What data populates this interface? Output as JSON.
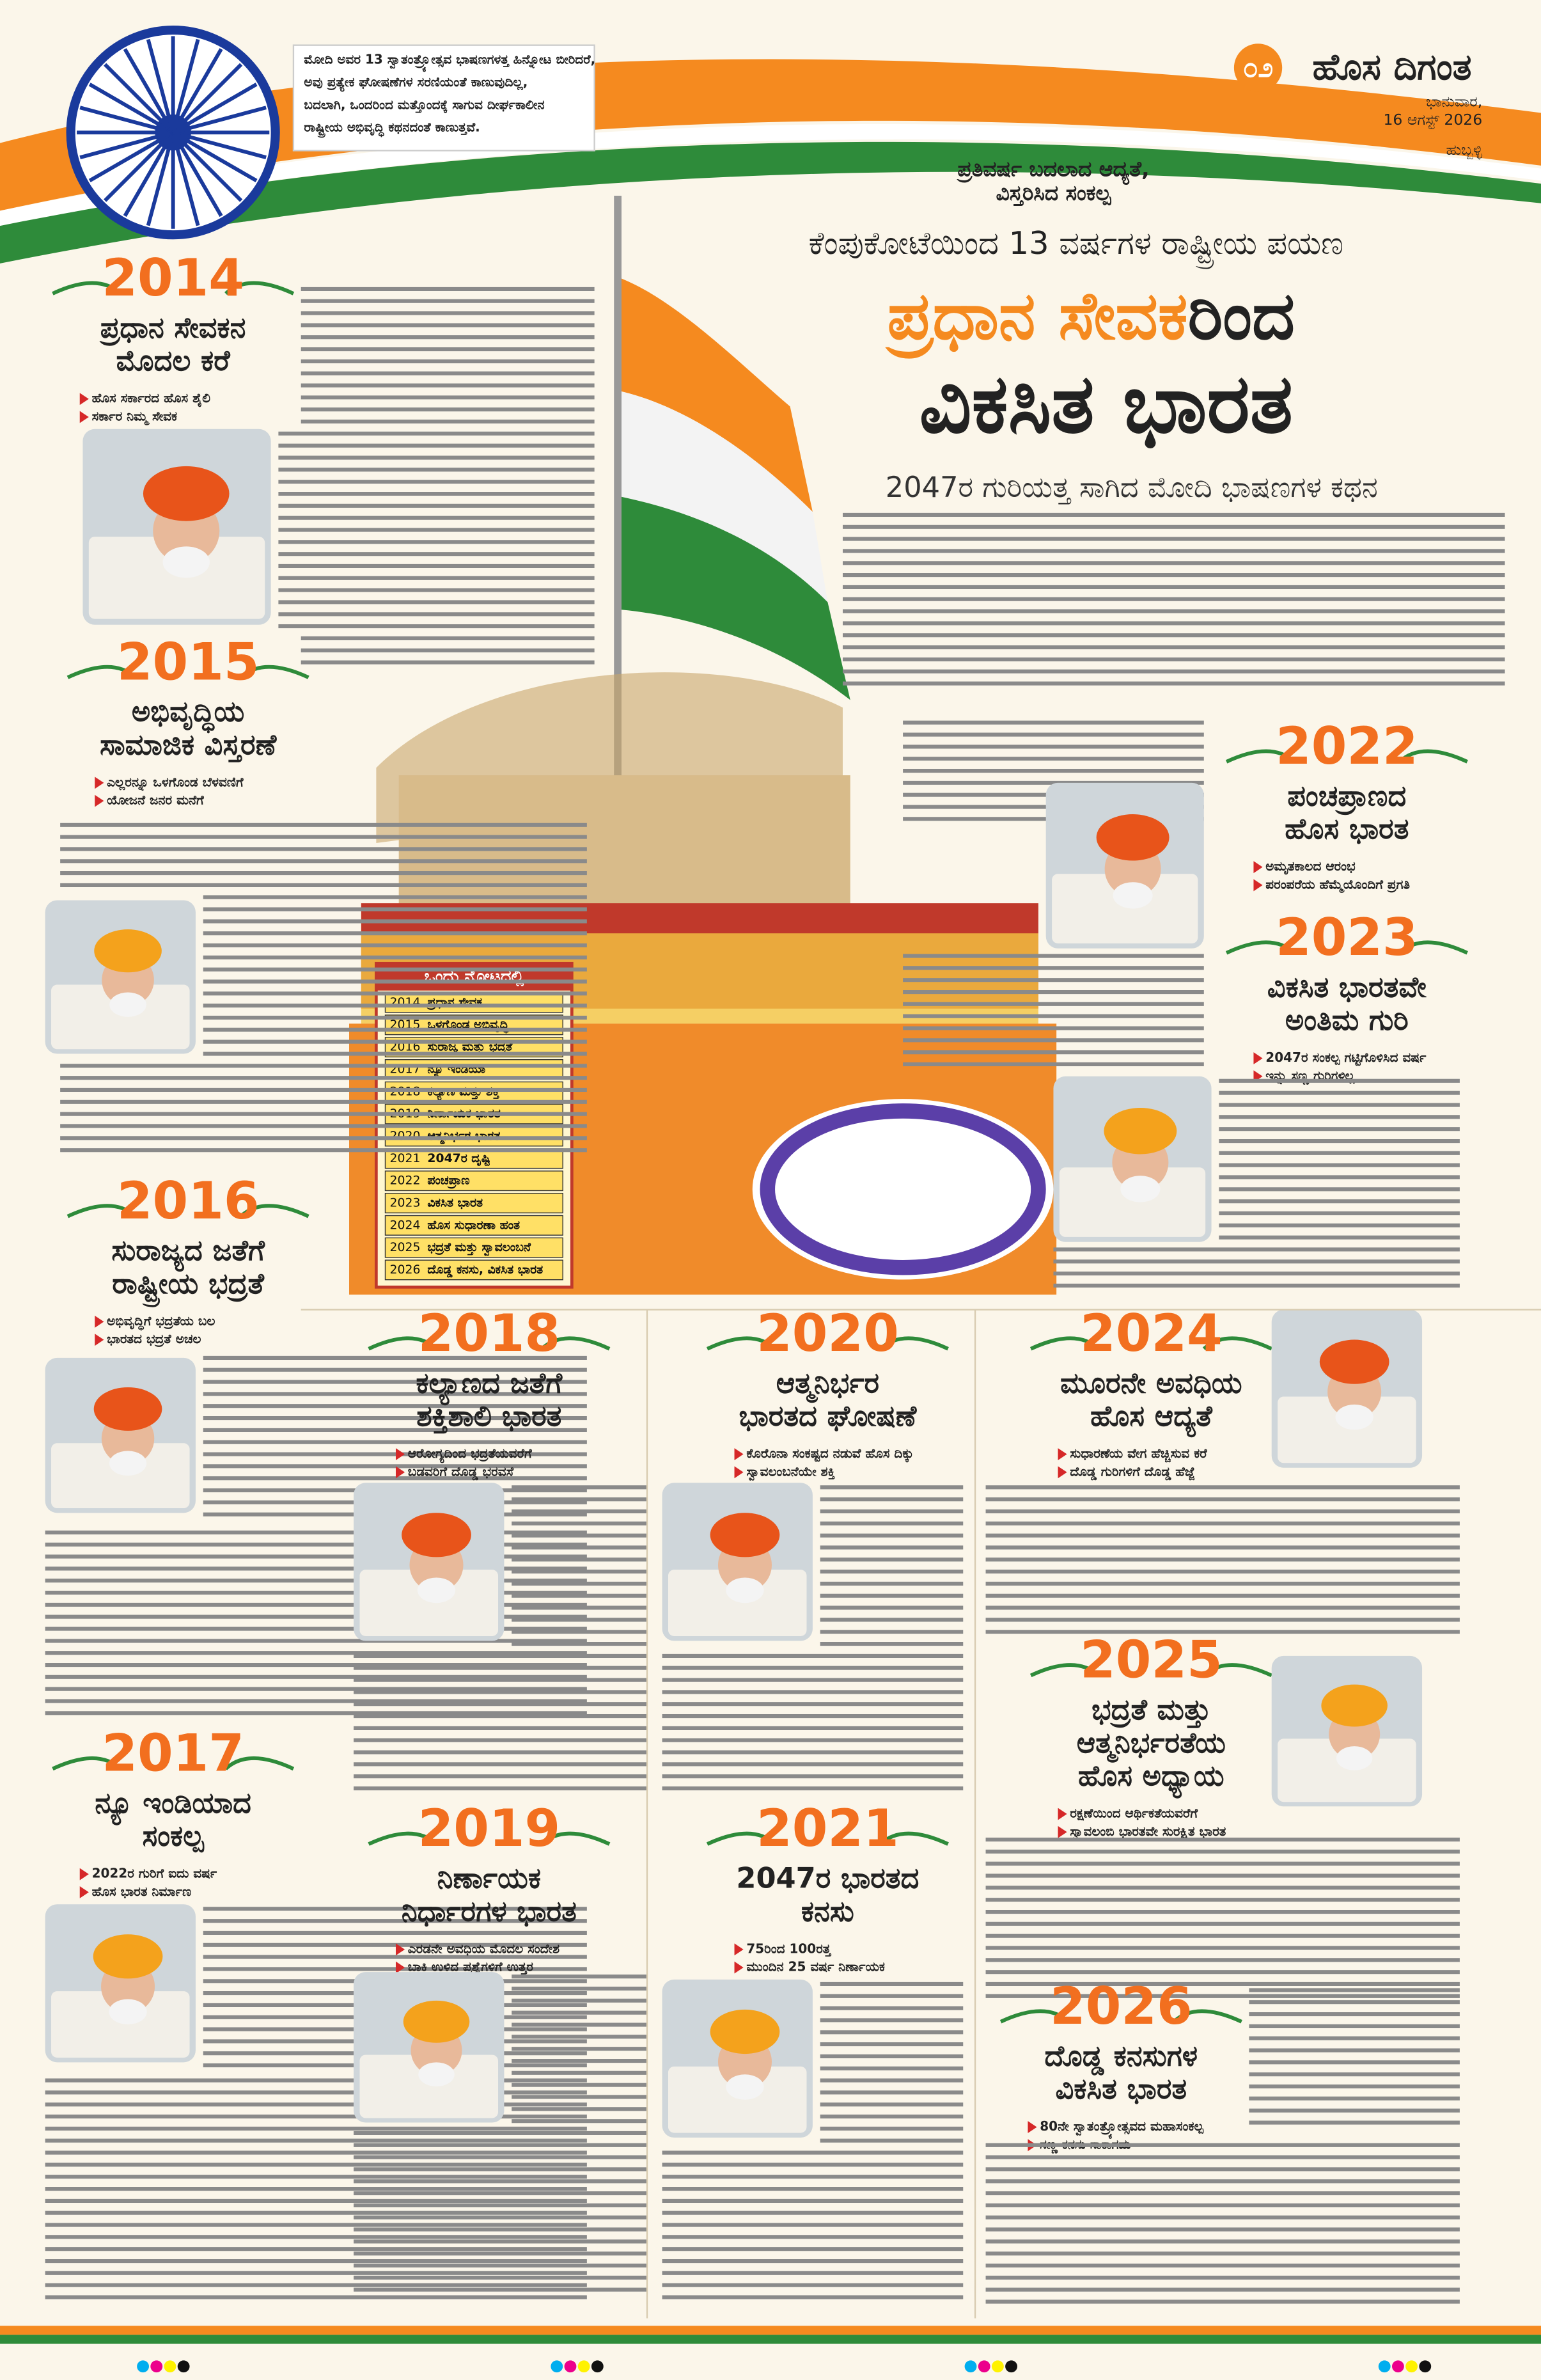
{
  "header": {
    "page_number": "೦೨",
    "masthead": "ಹೊಸ ದಿಗಂತ",
    "day": "ಭಾನುವಾರ,",
    "date": "16 ಆಗಸ್ಟ್ 2026",
    "city": "ಹುಬ್ಬಳ್ಳಿ"
  },
  "intro_box": [
    "ಮೋದಿ ಅವರ 13 ಸ್ವಾತಂತ್ರ್ಯೋತ್ಸವ ಭಾಷಣಗಳತ್ತ ಹಿನ್ನೋಟ ಬೀರಿದರೆ,",
    "ಅವು ಪ್ರತ್ಯೇಕ ಘೋಷಣೆಗಳ ಸರಣಿಯಂತೆ ಕಾಣುವುದಿಲ್ಲ,",
    "ಬದಲಾಗಿ, ಒಂದರಿಂದ ಮತ್ತೊಂದಕ್ಕೆ ಸಾಗುವ ದೀರ್ಘಕಾಲೀನ",
    "ರಾಷ್ಟ್ರೀಯ ಅಭಿವೃದ್ಧಿ ಕಥನದಂತೆ ಕಾಣುತ್ತವೆ."
  ],
  "kicker": [
    "ಪ್ರತಿವರ್ಷ ಬದಲಾದ ಆದ್ಯತೆ,",
    "ವಿಸ್ತರಿಸಿದ ಸಂಕಲ್ಪ"
  ],
  "overline": "ಕೆಂಪುಕೋಟೆಯಿಂದ 13 ವರ್ಷಗಳ ರಾಷ್ಟ್ರೀಯ ಪಯಣ",
  "title": {
    "highlight": "ಪ್ರಧಾನ ಸೇವಕ",
    "rest": "ರಿಂದ",
    "line2": "ವಿಕಸಿತ ಭಾರತ"
  },
  "subtitle": "2047ರ ಗುರಿಯತ್ತ ಸಾಗಿದ ಮೋದಿ ಭಾಷಣಗಳ ಕಥನ",
  "glance": {
    "title": "ಒಂದು ನೋಟದಲ್ಲಿ",
    "rows": [
      [
        "2014",
        "ಪ್ರಧಾನ ಸೇವಕ"
      ],
      [
        "2015",
        "ಒಳಗೊಂಡ ಅಭಿವೃದ್ಧಿ"
      ],
      [
        "2016",
        "ಸುರಾಜ್ಯ ಮತ್ತು ಭದ್ರತೆ"
      ],
      [
        "2017",
        "ನ್ಯೂ ಇಂಡಿಯಾ"
      ],
      [
        "2018",
        "ಕಲ್ಯಾಣ ಮತ್ತು ಶಕ್ತಿ"
      ],
      [
        "2019",
        "ನಿರ್ಣಾಯಕ ಭಾರತ"
      ],
      [
        "2020",
        "ಆತ್ಮನಿರ್ಭರ ಭಾರತ"
      ],
      [
        "2021",
        "2047ರ ದೃಷ್ಟಿ"
      ],
      [
        "2022",
        "ಪಂಚಪ್ರಾಣ"
      ],
      [
        "2023",
        "ವಿಕಸಿತ ಭಾರತ"
      ],
      [
        "2024",
        "ಹೊಸ ಸುಧಾರಣಾ ಹಂತ"
      ],
      [
        "2025",
        "ಭದ್ರತೆ ಮತ್ತು ಸ್ವಾವಲಂಬನೆ"
      ],
      [
        "2026",
        "ದೊಡ್ಡ ಕನಸು, ವಿಕಸಿತ ಭಾರತ"
      ]
    ]
  },
  "sections": [
    {
      "year": "2014",
      "headline": [
        "ಪ್ರಧಾನ ಸೇವಕನ",
        "ಮೊದಲ ಕರೆ"
      ],
      "bullets": [
        "ಹೊಸ ಸರ್ಕಾರದ ಹೊಸ ಶೈಲಿ",
        "ಸರ್ಕಾರ ನಿಮ್ಮ ಸೇವಕ"
      ]
    },
    {
      "year": "2015",
      "headline": [
        "ಅಭಿವೃದ್ಧಿಯ",
        "ಸಾಮಾಜಿಕ ವಿಸ್ತರಣೆ"
      ],
      "bullets": [
        "ಎಲ್ಲರನ್ನೂ ಒಳಗೊಂಡ ಬೆಳವಣಿಗೆ",
        "ಯೋಜನೆ ಜನರ ಮನೆಗೆ"
      ]
    },
    {
      "year": "2016",
      "headline": [
        "ಸುರಾಜ್ಯದ ಜತೆಗೆ",
        "ರಾಷ್ಟ್ರೀಯ ಭದ್ರತೆ"
      ],
      "bullets": [
        "ಅಭಿವೃದ್ಧಿಗೆ ಭದ್ರತೆಯ ಬಲ",
        "ಭಾರತದ ಭದ್ರತೆ ಅಚಲ"
      ]
    },
    {
      "year": "2017",
      "headline": [
        "ನ್ಯೂ ಇಂಡಿಯಾದ",
        "ಸಂಕಲ್ಪ"
      ],
      "bullets": [
        "2022ರ ಗುರಿಗೆ ಐದು ವರ್ಷ",
        "ಹೊಸ ಭಾರತ ನಿರ್ಮಾಣ"
      ]
    },
    {
      "year": "2018",
      "headline": [
        "ಕಲ್ಯಾಣದ ಜತೆಗೆ",
        "ಶಕ್ತಿಶಾಲಿ ಭಾರತ"
      ],
      "bullets": [
        "ಆರೋಗ್ಯದಿಂದ ಭದ್ರತೆಯವರೆಗೆ",
        "ಬಡವರಿಗೆ ದೊಡ್ಡ ಭರವಸೆ"
      ]
    },
    {
      "year": "2019",
      "headline": [
        "ನಿರ್ಣಾಯಕ",
        "ನಿರ್ಧಾರಗಳ ಭಾರತ"
      ],
      "bullets": [
        "ಎರಡನೇ ಅವಧಿಯ ಮೊದಲ ಸಂದೇಶ",
        "ಬಾಕಿ ಉಳಿದ ಪ್ರಶ್ನೆಗಳಿಗೆ ಉತ್ತರ"
      ]
    },
    {
      "year": "2020",
      "headline": [
        "ಆತ್ಮನಿರ್ಭರ",
        "ಭಾರತದ ಘೋಷಣೆ"
      ],
      "bullets": [
        "ಕೊರೊನಾ ಸಂಕಷ್ಟದ ನಡುವೆ ಹೊಸ ದಿಕ್ಕು",
        "ಸ್ವಾವಲಂಬನೆಯೇ ಶಕ್ತಿ"
      ]
    },
    {
      "year": "2021",
      "headline": [
        "2047ರ ಭಾರತದ",
        "ಕನಸು"
      ],
      "bullets": [
        "75ರಿಂದ 100ರತ್ತ",
        "ಮುಂದಿನ 25 ವರ್ಷ ನಿರ್ಣಾಯಕ"
      ]
    },
    {
      "year": "2022",
      "headline": [
        "ಪಂಚಪ್ರಾಣದ",
        "ಹೊಸ ಭಾರತ"
      ],
      "bullets": [
        "ಅಮೃತಕಾಲದ ಆರಂಭ",
        "ಪರಂಪರೆಯ ಹೆಮ್ಮೆಯೊಂದಿಗೆ ಪ್ರಗತಿ"
      ]
    },
    {
      "year": "2023",
      "headline": [
        "ವಿಕಸಿತ ಭಾರತವೇ",
        "ಅಂತಿಮ ಗುರಿ"
      ],
      "bullets": [
        "2047ರ ಸಂಕಲ್ಪ ಗಟ್ಟಿಗೊಳಿಸಿದ ವರ್ಷ",
        "ಇನ್ನು ಸಣ್ಣ ಗುರಿಗಳಿಲ್ಲ"
      ]
    },
    {
      "year": "2024",
      "headline": [
        "ಮೂರನೇ ಅವಧಿಯ",
        "ಹೊಸ ಆದ್ಯತೆ"
      ],
      "bullets": [
        "ಸುಧಾರಣೆಯ ವೇಗ ಹೆಚ್ಚಿಸುವ ಕರೆ",
        "ದೊಡ್ಡ ಗುರಿಗಳಿಗೆ ದೊಡ್ಡ ಹೆಜ್ಜೆ"
      ]
    },
    {
      "year": "2025",
      "headline": [
        "ಭದ್ರತೆ ಮತ್ತು",
        "ಆತ್ಮನಿರ್ಭರತೆಯ",
        "ಹೊಸ ಅಧ್ಯಾಯ"
      ],
      "bullets": [
        "ರಕ್ಷಣೆಯಿಂದ ಆರ್ಥಿಕತೆಯವರೆಗೆ",
        "ಸ್ವಾವಲಂಬಿ ಭಾರತವೇ ಸುರಕ್ಷಿತ ಭಾರತ"
      ]
    },
    {
      "year": "2026",
      "headline": [
        "ದೊಡ್ಡ ಕನಸುಗಳ",
        "ವಿಕಸಿತ ಭಾರತ"
      ],
      "bullets": [
        "80ನೇ ಸ್ವಾತಂತ್ರ್ಯೋತ್ಸವದ ಮಹಾಸಂಕಲ್ಪ",
        "ಸಣ್ಣ ಕನಸು ಸಾಕಾಗದು"
      ]
    }
  ]
}
